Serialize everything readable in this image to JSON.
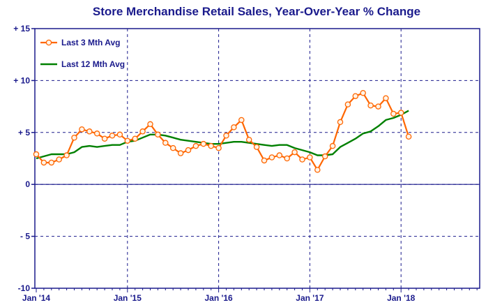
{
  "chart_data": {
    "type": "line",
    "title": "Store Merchandise Retail Sales, Year-Over-Year % Change",
    "xlabel": "",
    "ylabel": "",
    "ylim": [
      -10,
      15
    ],
    "y_ticks": [
      15,
      10,
      5,
      0,
      -5,
      -10
    ],
    "y_tick_labels": [
      "+ 15",
      "+ 10",
      "+ 5",
      "0",
      "- 5",
      "-10"
    ],
    "x_tick_labels": [
      "Jan '14",
      "Jan '15",
      "Jan '16",
      "Jan '17",
      "Jan '18"
    ],
    "x_start": "Jan 2014",
    "x_end": "Dec 2018",
    "grid": true,
    "legend_position": "top-left",
    "series": [
      {
        "name": "Last 3 Mth Avg",
        "color": "#ff6600",
        "marker": "circle",
        "values": [
          2.9,
          2.1,
          2.1,
          2.4,
          2.8,
          4.5,
          5.3,
          5.1,
          4.9,
          4.4,
          4.7,
          4.8,
          4.2,
          4.4,
          5.1,
          5.8,
          4.8,
          4.0,
          3.5,
          3.0,
          3.3,
          3.7,
          3.9,
          3.7,
          3.5,
          4.7,
          5.5,
          6.2,
          4.3,
          3.6,
          2.3,
          2.6,
          2.8,
          2.5,
          3.1,
          2.4,
          2.6,
          1.4,
          2.7,
          3.7,
          6.0,
          7.7,
          8.5,
          8.8,
          7.6,
          7.5,
          8.3,
          6.8,
          6.9,
          4.6
        ]
      },
      {
        "name": "Last 12 Mth Avg",
        "color": "#008000",
        "marker": "none",
        "values": [
          2.5,
          2.7,
          2.9,
          2.9,
          2.9,
          3.1,
          3.6,
          3.7,
          3.6,
          3.7,
          3.8,
          3.8,
          4.1,
          4.2,
          4.5,
          4.8,
          4.8,
          4.7,
          4.5,
          4.3,
          4.2,
          4.1,
          4.0,
          3.9,
          3.9,
          4.0,
          4.1,
          4.1,
          4.0,
          3.9,
          3.8,
          3.7,
          3.8,
          3.8,
          3.5,
          3.3,
          3.1,
          2.8,
          2.8,
          2.9,
          3.6,
          4.0,
          4.4,
          4.9,
          5.1,
          5.6,
          6.2,
          6.4,
          6.7,
          7.1
        ]
      }
    ]
  }
}
